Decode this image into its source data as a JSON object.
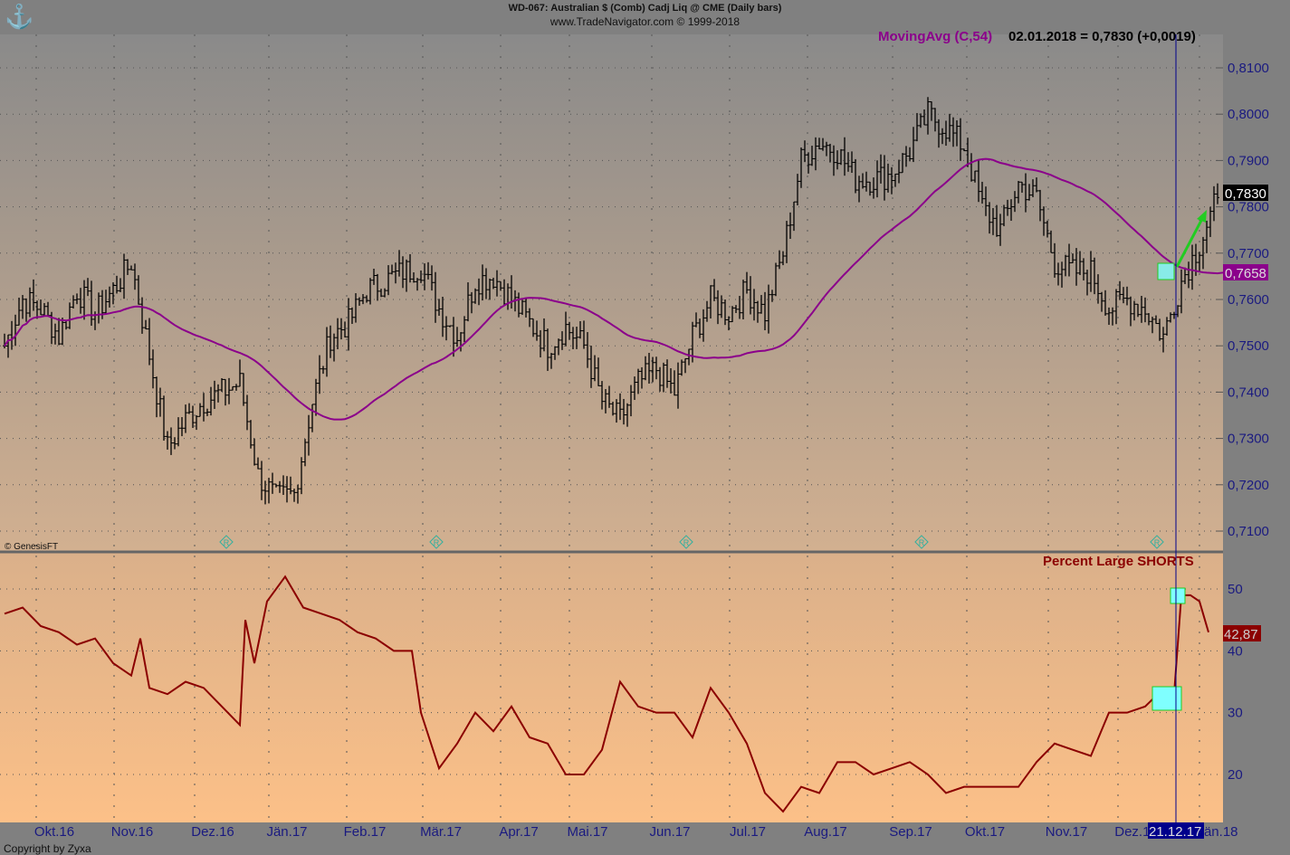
{
  "header": {
    "title": "WD-067:  Australian $ (Comb) Cadj Liq @ CME  (Daily bars)",
    "copyright": "www.TradeNavigator.com © 1999-2018"
  },
  "upper": {
    "indicator_label": "MovingAvg (C,54)",
    "readout": "02.01.2018 = 0,7830 (+0,0019)",
    "last_price": "0,7830",
    "ma_value": "0,7658",
    "source": "© GenesisFT",
    "marker": "R"
  },
  "lower": {
    "title": "Percent Large SHORTS",
    "last_value": "42,87"
  },
  "footer": {
    "copyright": "Copyright by Zyxa",
    "cursor_date": "21.12.17"
  },
  "colors": {
    "ma": "#8b008b",
    "shorts": "#8b0000",
    "arrow": "#22cc22",
    "highlight": "#7fffff",
    "cursor": "#00008b"
  },
  "chart_data": [
    {
      "type": "ohlc",
      "title": "Australian $ (Comb) Cadj Liq @ CME (Daily bars)",
      "ylim": [
        0.705,
        0.815
      ],
      "y_ticks": [
        "0,7100",
        "0,7200",
        "0,7300",
        "0,7400",
        "0,7500",
        "0,7600",
        "0,7700",
        "0,7800",
        "0,7900",
        "0,8000",
        "0,8100"
      ],
      "x_ticks": [
        "Okt.16",
        "Nov.16",
        "Dez.16",
        "Jän.17",
        "Feb.17",
        "Mär.17",
        "Apr.17",
        "Mai.17",
        "Jun.17",
        "Jul.17",
        "Aug.17",
        "Sep.17",
        "Okt.17",
        "Nov.17",
        "Dez.17",
        "Jän.18"
      ],
      "weekly_closes": [
        0.75,
        0.76,
        0.758,
        0.752,
        0.762,
        0.757,
        0.762,
        0.768,
        0.748,
        0.728,
        0.734,
        0.738,
        0.74,
        0.742,
        0.722,
        0.717,
        0.718,
        0.738,
        0.752,
        0.755,
        0.762,
        0.764,
        0.766,
        0.767,
        0.758,
        0.752,
        0.764,
        0.765,
        0.76,
        0.755,
        0.75,
        0.754,
        0.75,
        0.738,
        0.734,
        0.742,
        0.745,
        0.74,
        0.752,
        0.76,
        0.757,
        0.762,
        0.757,
        0.77,
        0.79,
        0.794,
        0.792,
        0.786,
        0.786,
        0.787,
        0.792,
        0.8,
        0.797,
        0.793,
        0.78,
        0.775,
        0.785,
        0.782,
        0.768,
        0.766,
        0.766,
        0.758,
        0.76,
        0.758,
        0.752,
        0.764,
        0.772,
        0.782
      ],
      "ma_period": 54
    },
    {
      "type": "line",
      "title": "Percent Large SHORTS",
      "ylim": [
        12,
        55
      ],
      "y_ticks": [
        "20",
        "30",
        "40",
        "50"
      ],
      "points_week_value": [
        [
          0,
          46
        ],
        [
          1,
          47
        ],
        [
          2,
          44
        ],
        [
          3,
          43
        ],
        [
          4,
          41
        ],
        [
          5,
          42
        ],
        [
          6,
          38
        ],
        [
          7,
          36
        ],
        [
          7.5,
          42
        ],
        [
          8,
          34
        ],
        [
          9,
          33
        ],
        [
          10,
          35
        ],
        [
          11,
          34
        ],
        [
          12,
          31
        ],
        [
          13,
          28
        ],
        [
          13.3,
          45
        ],
        [
          13.8,
          38
        ],
        [
          14.5,
          48
        ],
        [
          15.5,
          52
        ],
        [
          16.5,
          47
        ],
        [
          17.5,
          46
        ],
        [
          18.5,
          45
        ],
        [
          19.5,
          43
        ],
        [
          20.5,
          42
        ],
        [
          21.5,
          40
        ],
        [
          22.5,
          40
        ],
        [
          23,
          30
        ],
        [
          24,
          21
        ],
        [
          25,
          25
        ],
        [
          26,
          30
        ],
        [
          27,
          27
        ],
        [
          28,
          31
        ],
        [
          29,
          26
        ],
        [
          30,
          25
        ],
        [
          31,
          20
        ],
        [
          32,
          20
        ],
        [
          33,
          24
        ],
        [
          34,
          35
        ],
        [
          35,
          31
        ],
        [
          36,
          30
        ],
        [
          37,
          30
        ],
        [
          38,
          26
        ],
        [
          39,
          34
        ],
        [
          40,
          30
        ],
        [
          41,
          25
        ],
        [
          42,
          17
        ],
        [
          43,
          14
        ],
        [
          44,
          18
        ],
        [
          45,
          17
        ],
        [
          46,
          22
        ],
        [
          47,
          22
        ],
        [
          48,
          20
        ],
        [
          49,
          21
        ],
        [
          50,
          22
        ],
        [
          51,
          20
        ],
        [
          52,
          17
        ],
        [
          53,
          18
        ],
        [
          54,
          18
        ],
        [
          55,
          18
        ],
        [
          56,
          18
        ],
        [
          57,
          22
        ],
        [
          58,
          25
        ],
        [
          59,
          24
        ],
        [
          60,
          23
        ],
        [
          61,
          30
        ],
        [
          62,
          30
        ],
        [
          63,
          31
        ],
        [
          63.7,
          33
        ],
        [
          64.2,
          31
        ],
        [
          64.6,
          33
        ],
        [
          65,
          49
        ],
        [
          65.5,
          49
        ],
        [
          66,
          48
        ],
        [
          66.5,
          43
        ]
      ]
    }
  ]
}
